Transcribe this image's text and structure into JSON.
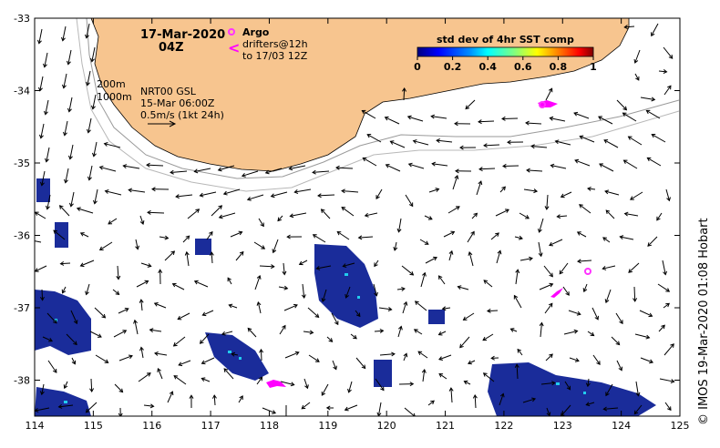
{
  "header": {
    "date": "17-Mar-2020",
    "time": "04Z"
  },
  "legend": {
    "argo_label": "Argo",
    "drifter_label_1": "drifters@12h",
    "drifter_label_2": "to 17/03 12Z",
    "drifter_symbol": "<",
    "contour_200": "200m",
    "contour_1000": "1000m",
    "model_label": "NRT00 GSL",
    "model_time": "15-Mar 06:00Z",
    "scale_label": "0.5m/s (1kt 24h)"
  },
  "colorbar": {
    "title": "std dev of 4hr SST comp",
    "ticks": [
      "0",
      "0.2",
      "0.4",
      "0.6",
      "0.8",
      "1"
    ],
    "colors": [
      "#000080",
      "#0000ff",
      "#0080ff",
      "#00ffff",
      "#80ff80",
      "#ffff00",
      "#ff8000",
      "#ff0000",
      "#800000"
    ]
  },
  "axes": {
    "x_ticks": [
      "114",
      "115",
      "116",
      "117",
      "118",
      "119",
      "120",
      "121",
      "122",
      "123",
      "124",
      "125"
    ],
    "y_ticks": [
      "-33",
      "-34",
      "-35",
      "-36",
      "-37",
      "-38"
    ]
  },
  "credit": "© IMOS 19-Mar-2020 01:08 Hobart",
  "colors": {
    "land": "#f7c58f",
    "sst_patch": "#1a2c9a",
    "argo": "#ff33ff",
    "drifter": "#ff00ff"
  }
}
